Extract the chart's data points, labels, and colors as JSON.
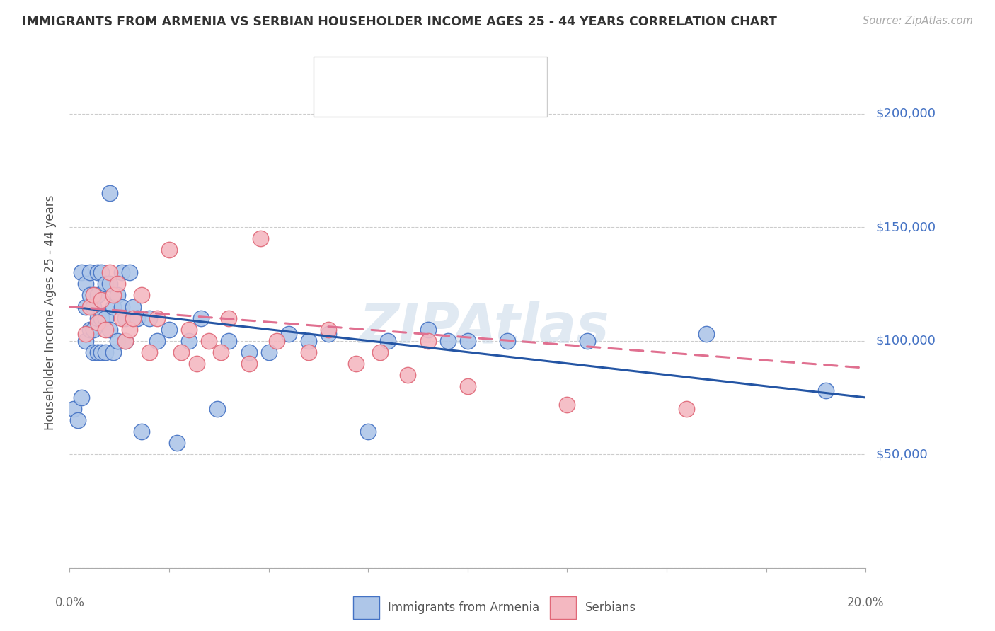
{
  "title": "IMMIGRANTS FROM ARMENIA VS SERBIAN HOUSEHOLDER INCOME AGES 25 - 44 YEARS CORRELATION CHART",
  "source": "Source: ZipAtlas.com",
  "ylabel": "Householder Income Ages 25 - 44 years",
  "xlim": [
    0.0,
    0.2
  ],
  "ylim": [
    0,
    225000
  ],
  "yticks": [
    0,
    50000,
    100000,
    150000,
    200000
  ],
  "ytick_labels": [
    "",
    "$50,000",
    "$100,000",
    "$150,000",
    "$200,000"
  ],
  "armenia_color": "#aec6e8",
  "serbia_color": "#f4b8c1",
  "armenia_edge_color": "#4472c4",
  "serbia_edge_color": "#e06878",
  "trendline_armenia_color": "#2455a4",
  "trendline_serbia_color": "#e07090",
  "watermark": "ZIPAtlas",
  "armenia_x": [
    0.001,
    0.002,
    0.003,
    0.003,
    0.004,
    0.004,
    0.004,
    0.005,
    0.005,
    0.005,
    0.006,
    0.006,
    0.006,
    0.006,
    0.007,
    0.007,
    0.007,
    0.007,
    0.008,
    0.008,
    0.008,
    0.009,
    0.009,
    0.009,
    0.01,
    0.01,
    0.01,
    0.011,
    0.011,
    0.012,
    0.012,
    0.013,
    0.013,
    0.014,
    0.014,
    0.015,
    0.016,
    0.017,
    0.018,
    0.02,
    0.022,
    0.025,
    0.027,
    0.03,
    0.033,
    0.037,
    0.04,
    0.045,
    0.05,
    0.055,
    0.06,
    0.065,
    0.075,
    0.08,
    0.09,
    0.095,
    0.1,
    0.11,
    0.13,
    0.16,
    0.19
  ],
  "armenia_y": [
    70000,
    65000,
    130000,
    75000,
    125000,
    115000,
    100000,
    120000,
    105000,
    130000,
    120000,
    115000,
    105000,
    95000,
    130000,
    120000,
    110000,
    95000,
    130000,
    110000,
    95000,
    125000,
    110000,
    95000,
    165000,
    125000,
    105000,
    115000,
    95000,
    120000,
    100000,
    130000,
    115000,
    110000,
    100000,
    130000,
    115000,
    110000,
    60000,
    110000,
    100000,
    105000,
    55000,
    100000,
    110000,
    70000,
    100000,
    95000,
    95000,
    103000,
    100000,
    103000,
    60000,
    100000,
    105000,
    100000,
    100000,
    100000,
    100000,
    103000,
    78000
  ],
  "serbia_x": [
    0.004,
    0.005,
    0.006,
    0.007,
    0.008,
    0.009,
    0.01,
    0.011,
    0.012,
    0.013,
    0.014,
    0.015,
    0.016,
    0.018,
    0.02,
    0.022,
    0.025,
    0.028,
    0.03,
    0.032,
    0.035,
    0.038,
    0.04,
    0.045,
    0.048,
    0.052,
    0.06,
    0.065,
    0.072,
    0.078,
    0.085,
    0.09,
    0.1,
    0.125,
    0.155
  ],
  "serbia_y": [
    103000,
    115000,
    120000,
    108000,
    118000,
    105000,
    130000,
    120000,
    125000,
    110000,
    100000,
    105000,
    110000,
    120000,
    95000,
    110000,
    140000,
    95000,
    105000,
    90000,
    100000,
    95000,
    110000,
    90000,
    145000,
    100000,
    95000,
    105000,
    90000,
    95000,
    85000,
    100000,
    80000,
    72000,
    70000
  ]
}
